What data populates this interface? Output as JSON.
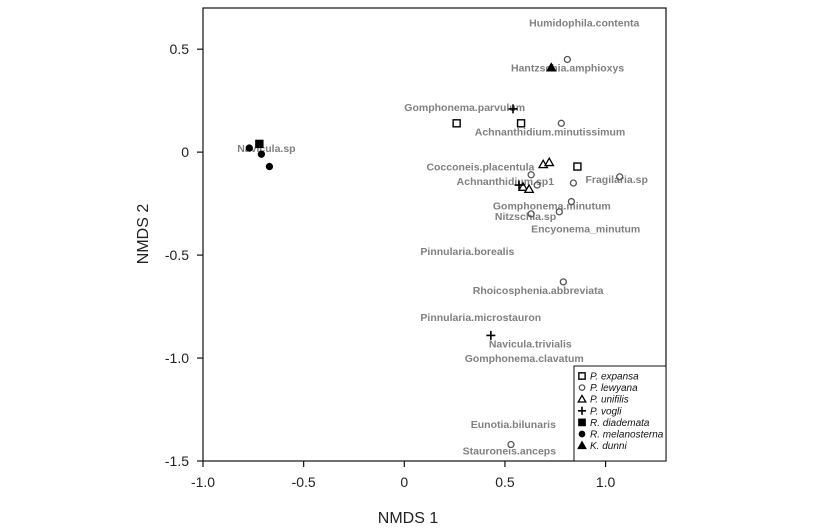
{
  "chart_data": {
    "type": "scatter",
    "xlabel": "NMDS 1",
    "ylabel": "NMDS 2",
    "xlim": [
      -1.0,
      1.3
    ],
    "ylim": [
      -1.5,
      0.7
    ],
    "xticks": [
      -1.0,
      -0.5,
      0,
      0.5,
      1.0
    ],
    "xtick_labels": [
      "-1.0",
      "-0.5",
      "0",
      "0.5",
      "1.0"
    ],
    "yticks": [
      0.5,
      0,
      -0.5,
      -1.0,
      -1.5
    ],
    "ytick_labels": [
      "0.5",
      "0",
      "-0.5",
      "-1.0",
      "-1.5"
    ],
    "legend_position": "bottom-right",
    "series": [
      {
        "name": "P. expansa",
        "marker": "square-open",
        "points": [
          [
            0.26,
            0.14
          ],
          [
            0.58,
            0.14
          ],
          [
            0.86,
            -0.07
          ]
        ]
      },
      {
        "name": "P. lewyana",
        "marker": "circle-open",
        "points": [
          [
            0.81,
            0.45
          ],
          [
            0.78,
            0.14
          ],
          [
            0.63,
            -0.11
          ],
          [
            0.66,
            -0.16
          ],
          [
            0.84,
            -0.15
          ],
          [
            1.07,
            -0.12
          ],
          [
            0.83,
            -0.24
          ],
          [
            0.63,
            -0.3
          ],
          [
            0.77,
            -0.29
          ],
          [
            0.79,
            -0.63
          ],
          [
            0.53,
            -1.42
          ]
        ]
      },
      {
        "name": "P. unifilis",
        "marker": "triangle-open",
        "points": [
          [
            0.69,
            -0.06
          ],
          [
            0.72,
            -0.05
          ],
          [
            0.59,
            -0.17
          ],
          [
            0.62,
            -0.18
          ]
        ]
      },
      {
        "name": "P. vogli",
        "marker": "plus",
        "points": [
          [
            0.54,
            0.21
          ],
          [
            0.57,
            -0.16
          ],
          [
            0.43,
            -0.89
          ]
        ]
      },
      {
        "name": "R. diademata",
        "marker": "square-filled",
        "points": [
          [
            -0.72,
            0.04
          ]
        ]
      },
      {
        "name": "R. melanosterna",
        "marker": "circle-filled",
        "points": [
          [
            -0.77,
            0.02
          ],
          [
            -0.71,
            -0.01
          ],
          [
            -0.67,
            -0.07
          ]
        ]
      },
      {
        "name": "K. dunni",
        "marker": "triangle-filled",
        "points": [
          [
            0.73,
            0.41
          ]
        ]
      }
    ],
    "species_labels": [
      {
        "text": "Humidophila.contenta",
        "x": 0.62,
        "y": 0.63
      },
      {
        "text": "Hantzschia.amphioxys",
        "x": 0.53,
        "y": 0.41
      },
      {
        "text": "Gomphonema.parvulum",
        "x": 0.0,
        "y": 0.22
      },
      {
        "text": "Achnanthidium.minutissimum",
        "x": 0.35,
        "y": 0.1
      },
      {
        "text": "Navicula.sp",
        "x": -0.83,
        "y": 0.02
      },
      {
        "text": "Cocconeis.placentula",
        "x": 0.11,
        "y": -0.07
      },
      {
        "text": "Achnanthidium.sp1",
        "x": 0.26,
        "y": -0.14
      },
      {
        "text": "Fragilaria.sp",
        "x": 0.9,
        "y": -0.13
      },
      {
        "text": "Gomphonema.minutum",
        "x": 0.44,
        "y": -0.26
      },
      {
        "text": "Nitzschia.sp",
        "x": 0.45,
        "y": -0.31
      },
      {
        "text": "Encyonema_minutum",
        "x": 0.63,
        "y": -0.37
      },
      {
        "text": "Pinnularia.borealis",
        "x": 0.08,
        "y": -0.48
      },
      {
        "text": "Rhoicosphenia.abbreviata",
        "x": 0.34,
        "y": -0.67
      },
      {
        "text": "Pinnularia.microstauron",
        "x": 0.08,
        "y": -0.8
      },
      {
        "text": "Navicula.trivialis",
        "x": 0.42,
        "y": -0.93
      },
      {
        "text": "Gomphonema.clavatum",
        "x": 0.3,
        "y": -1.0
      },
      {
        "text": "Eunotia.bilunaris",
        "x": 0.33,
        "y": -1.32
      },
      {
        "text": "Stauroneis.anceps",
        "x": 0.29,
        "y": -1.45
      }
    ]
  },
  "colors": {
    "species_label": "#808080",
    "open_marker": "#555555",
    "filled_marker": "#000000",
    "axis": "#111111"
  }
}
